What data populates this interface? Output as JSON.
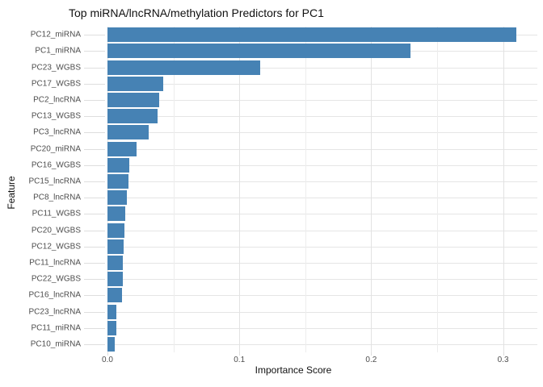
{
  "chart_data": {
    "type": "bar",
    "orientation": "horizontal",
    "title": "Top miRNA/lncRNA/methylation Predictors for PC1",
    "xlabel": "Importance Score",
    "ylabel": "Feature",
    "categories": [
      "PC12_miRNA",
      "PC1_miRNA",
      "PC23_WGBS",
      "PC17_WGBS",
      "PC2_lncRNA",
      "PC13_WGBS",
      "PC3_lncRNA",
      "PC20_miRNA",
      "PC16_WGBS",
      "PC15_lncRNA",
      "PC8_lncRNA",
      "PC11_WGBS",
      "PC20_WGBS",
      "PC12_WGBS",
      "PC11_lncRNA",
      "PC22_WGBS",
      "PC16_lncRNA",
      "PC23_lncRNA",
      "PC11_miRNA",
      "PC10_miRNA"
    ],
    "values": [
      0.31,
      0.23,
      0.116,
      0.042,
      0.039,
      0.038,
      0.031,
      0.022,
      0.0165,
      0.016,
      0.0147,
      0.0135,
      0.013,
      0.0125,
      0.0118,
      0.0115,
      0.0108,
      0.007,
      0.0065,
      0.0055
    ],
    "xlim": [
      0,
      0.326
    ],
    "x_major_ticks": [
      0.0,
      0.1,
      0.2,
      0.3
    ],
    "x_minor_ticks": [
      0.05,
      0.15,
      0.25
    ],
    "x_tick_labels": [
      "0.0",
      "0.1",
      "0.2",
      "0.3"
    ],
    "grid": true,
    "legend": "none",
    "bar_color": "#4682B4",
    "background_color": "#FFFFFF",
    "major_grid_color": "#E2E2E2",
    "minor_grid_color": "#EDEDED"
  }
}
